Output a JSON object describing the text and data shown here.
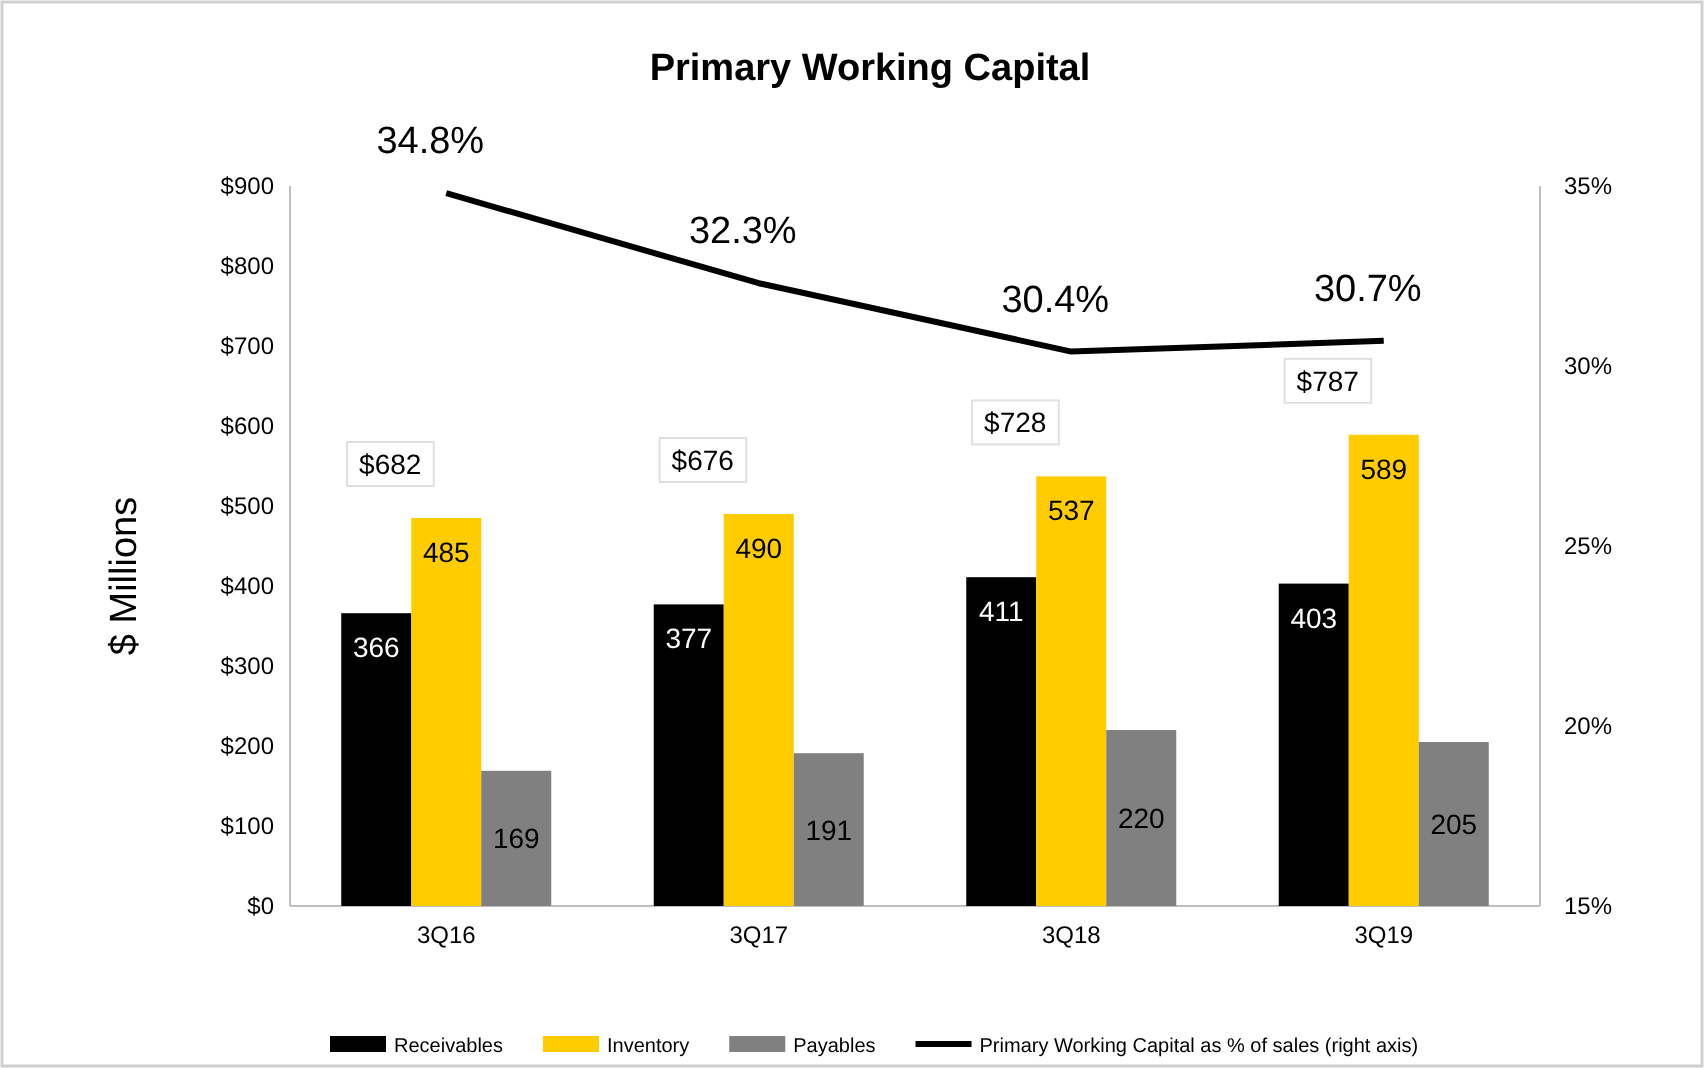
{
  "chart_data": {
    "type": "bar",
    "title": "Primary Working Capital",
    "ylabel": "$ Millions",
    "categories": [
      "3Q16",
      "3Q17",
      "3Q18",
      "3Q19"
    ],
    "series": [
      {
        "name": "Receivables",
        "color": "#000000",
        "values": [
          366,
          377,
          411,
          403
        ],
        "value_labels": [
          "366",
          "377",
          "411",
          "403"
        ]
      },
      {
        "name": "Inventory",
        "color": "#ffcc00",
        "values": [
          485,
          490,
          537,
          589
        ],
        "value_labels": [
          "485",
          "490",
          "537",
          "589"
        ]
      },
      {
        "name": "Payables",
        "color": "#808080",
        "values": [
          169,
          191,
          220,
          205
        ],
        "value_labels": [
          "169",
          "191",
          "220",
          "205"
        ]
      },
      {
        "name": "Primary Working Capital as % of sales (right axis)",
        "type": "line",
        "axis": "y2",
        "color": "#000000",
        "values": [
          34.8,
          32.3,
          30.4,
          30.7
        ],
        "value_labels": [
          "34.8%",
          "32.3%",
          "30.4%",
          "30.7%"
        ]
      }
    ],
    "ylim": [
      0,
      900
    ],
    "yticks": [
      {
        "value": 0,
        "label": "$0"
      },
      {
        "value": 100,
        "label": "$100"
      },
      {
        "value": 200,
        "label": "$200"
      },
      {
        "value": 300,
        "label": "$300"
      },
      {
        "value": 400,
        "label": "$400"
      },
      {
        "value": 500,
        "label": "$500"
      },
      {
        "value": 600,
        "label": "$600"
      },
      {
        "value": 700,
        "label": "$700"
      },
      {
        "value": 800,
        "label": "$800"
      },
      {
        "value": 900,
        "label": "$900"
      }
    ],
    "y2lim": [
      15,
      35
    ],
    "y2ticks": [
      {
        "value": 15,
        "label": "15%"
      },
      {
        "value": 20,
        "label": "20%"
      },
      {
        "value": 25,
        "label": "25%"
      },
      {
        "value": 30,
        "label": "30%"
      },
      {
        "value": 35,
        "label": "35%"
      }
    ],
    "annotations": [
      "$682",
      "$676",
      "$728",
      "$787"
    ],
    "legend": "bottom",
    "grid": false,
    "marker": "none"
  }
}
